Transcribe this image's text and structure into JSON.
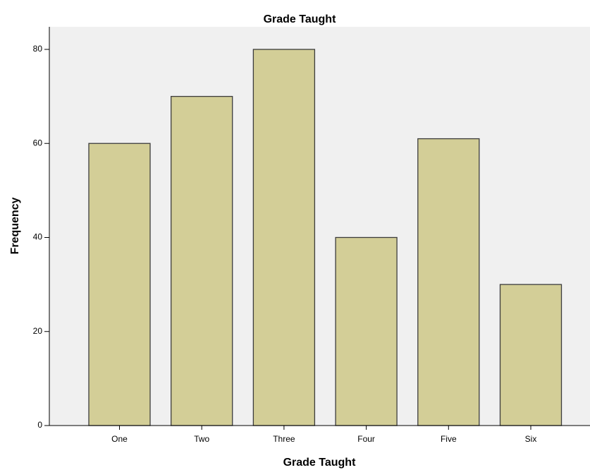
{
  "chart_data": {
    "type": "bar",
    "title": "Grade Taught",
    "x_label": "Grade Taught",
    "y_label": "Frequency",
    "categories": [
      "One",
      "Two",
      "Three",
      "Four",
      "Five",
      "Six"
    ],
    "values": [
      60,
      70,
      80,
      40,
      61,
      30
    ],
    "color": "#d3ce97",
    "ylim": [
      0,
      84.8
    ],
    "yticks": [
      0,
      20,
      40,
      60,
      80
    ],
    "grid": false
  }
}
